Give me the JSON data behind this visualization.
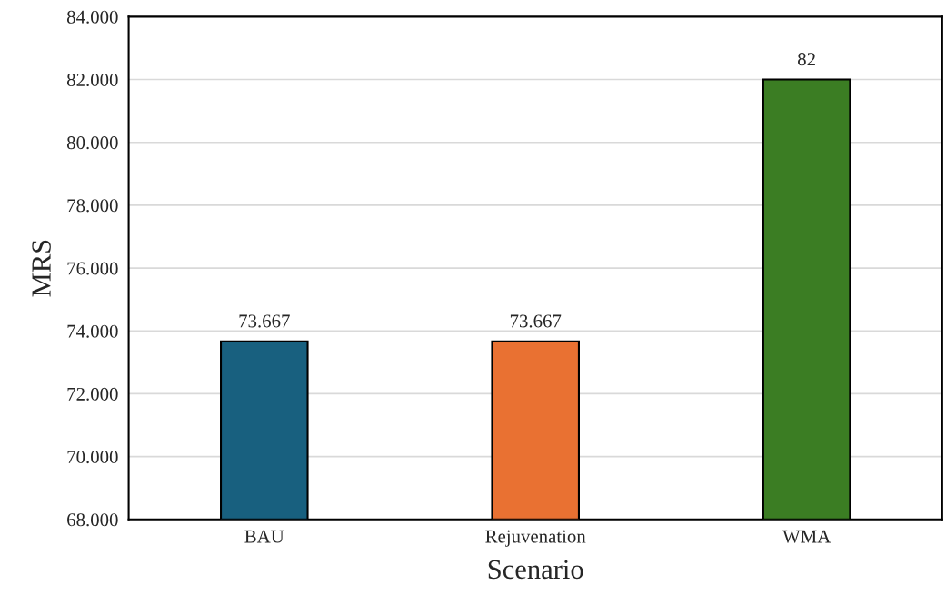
{
  "chart_data": {
    "type": "bar",
    "xlabel": "Scenario",
    "ylabel": "MRS",
    "categories": [
      "BAU",
      "Rejuvenation",
      "WMA"
    ],
    "values": [
      73.667,
      73.667,
      82
    ],
    "colors": [
      "#18607f",
      "#e97132",
      "#3b7d23"
    ],
    "ylim": [
      68,
      84
    ],
    "yticks": [
      {
        "value": 68,
        "label": "68.000"
      },
      {
        "value": 70,
        "label": "70.000"
      },
      {
        "value": 72,
        "label": "72.000"
      },
      {
        "value": 74,
        "label": "74.000"
      },
      {
        "value": 76,
        "label": "76.000"
      },
      {
        "value": 78,
        "label": "78.000"
      },
      {
        "value": 80,
        "label": "80.000"
      },
      {
        "value": 82,
        "label": "82.000"
      },
      {
        "value": 84,
        "label": "84.000"
      }
    ],
    "grid": "y",
    "data_labels": true,
    "legend": false
  }
}
